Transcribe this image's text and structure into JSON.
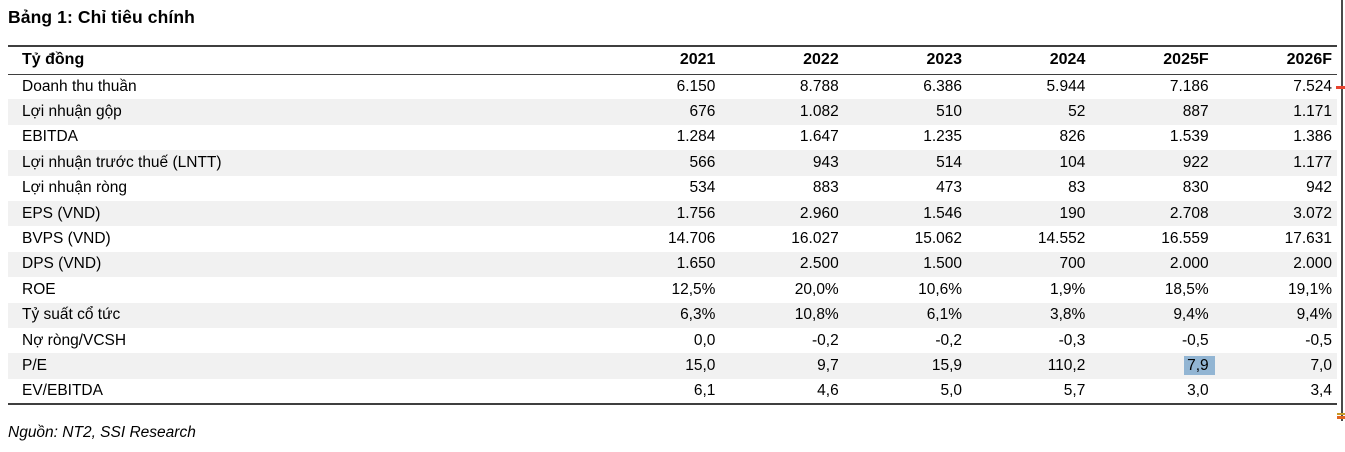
{
  "title": "Bảng 1: Chỉ tiêu chính",
  "table": {
    "unit_header": "Tỷ đồng",
    "columns": [
      "2021",
      "2022",
      "2023",
      "2024",
      "2025F",
      "2026F"
    ],
    "rows": [
      {
        "label": "Doanh thu thuần",
        "values": [
          "6.150",
          "8.788",
          "6.386",
          "5.944",
          "7.186",
          "7.524"
        ]
      },
      {
        "label": "Lợi nhuận gộp",
        "values": [
          "676",
          "1.082",
          "510",
          "52",
          "887",
          "1.171"
        ]
      },
      {
        "label": "EBITDA",
        "values": [
          "1.284",
          "1.647",
          "1.235",
          "826",
          "1.539",
          "1.386"
        ]
      },
      {
        "label": "Lợi nhuận trước thuế (LNTT)",
        "values": [
          "566",
          "943",
          "514",
          "104",
          "922",
          "1.177"
        ]
      },
      {
        "label": "Lợi nhuận ròng",
        "values": [
          "534",
          "883",
          "473",
          "83",
          "830",
          "942"
        ]
      },
      {
        "label": "EPS (VND)",
        "values": [
          "1.756",
          "2.960",
          "1.546",
          "190",
          "2.708",
          "3.072"
        ]
      },
      {
        "label": "BVPS (VND)",
        "values": [
          "14.706",
          "16.027",
          "15.062",
          "14.552",
          "16.559",
          "17.631"
        ]
      },
      {
        "label": "DPS (VND)",
        "values": [
          "1.650",
          "2.500",
          "1.500",
          "700",
          "2.000",
          "2.000"
        ]
      },
      {
        "label": "ROE",
        "values": [
          "12,5%",
          "20,0%",
          "10,6%",
          "1,9%",
          "18,5%",
          "19,1%"
        ]
      },
      {
        "label": "Tỷ suất cổ tức",
        "values": [
          "6,3%",
          "10,8%",
          "6,1%",
          "3,8%",
          "9,4%",
          "9,4%"
        ]
      },
      {
        "label": "Nợ ròng/VCSH",
        "values": [
          "0,0",
          "-0,2",
          "-0,2",
          "-0,3",
          "-0,5",
          "-0,5"
        ]
      },
      {
        "label": "P/E",
        "values": [
          "15,0",
          "9,7",
          "15,9",
          "110,2",
          "7,9",
          "7,0"
        ]
      },
      {
        "label": "EV/EBITDA",
        "values": [
          "6,1",
          "4,6",
          "5,0",
          "5,7",
          "3,0",
          "3,4"
        ]
      }
    ],
    "highlight_cell": {
      "row_index": 11,
      "col_index": 4
    }
  },
  "source": "Nguồn: NT2, SSI Research",
  "colors": {
    "stripe": "#f1f1f1",
    "border": "#3f3f3f",
    "highlight": "#92b5d3",
    "text": "#000000",
    "artifact_red": "#e8432e",
    "artifact_gold": "#c79b27",
    "artifact_orange": "#e0641f",
    "artifact_line": "#4a4a4a"
  }
}
